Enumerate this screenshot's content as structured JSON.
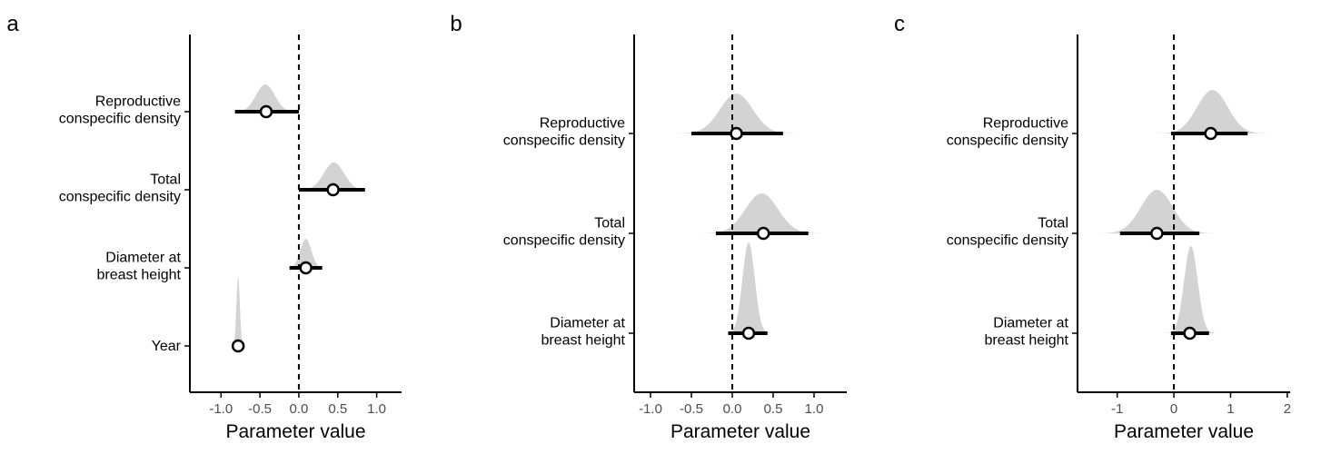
{
  "chart_data": [
    {
      "panel": "a",
      "type": "halfeye",
      "xlabel": "Parameter value",
      "xlim": [
        -1.4,
        1.32
      ],
      "xticks": [
        -1.0,
        -0.5,
        0.0,
        0.5,
        1.0
      ],
      "xtick_labels": [
        "-1.0",
        "-0.5",
        "0.0",
        "0.5",
        "1.0"
      ],
      "reference_line_x": 0,
      "categories": [
        {
          "label": [
            "Reproductive",
            "conspecific density"
          ],
          "median": -0.42,
          "lower": -0.82,
          "upper": 0.0,
          "dist_mean": -0.43,
          "dist_sd": 0.12,
          "dist_skew": 0.0
        },
        {
          "label": [
            "Total",
            "conspecific density"
          ],
          "median": 0.44,
          "lower": 0.0,
          "upper": 0.85,
          "dist_mean": 0.45,
          "dist_sd": 0.13,
          "dist_skew": 0.0
        },
        {
          "label": [
            "Diameter at",
            "breast height"
          ],
          "median": 0.09,
          "lower": -0.12,
          "upper": 0.3,
          "dist_mean": 0.09,
          "dist_sd": 0.07,
          "dist_skew": 0.0
        },
        {
          "label": [
            "Year"
          ],
          "median": -0.78,
          "lower": -0.82,
          "upper": -0.74,
          "dist_mean": -0.78,
          "dist_sd": 0.022,
          "dist_skew": 0.0
        }
      ]
    },
    {
      "panel": "b",
      "type": "halfeye",
      "xlabel": "Parameter value",
      "xlim": [
        -1.2,
        1.4
      ],
      "xticks": [
        -1.0,
        -0.5,
        0.0,
        0.5,
        1.0
      ],
      "xtick_labels": [
        "-1.0",
        "-0.5",
        "0.0",
        "0.5",
        "1.0"
      ],
      "reference_line_x": 0,
      "categories": [
        {
          "label": [
            "Reproductive",
            "conspecific density"
          ],
          "median": 0.05,
          "lower": -0.5,
          "upper": 0.62,
          "dist_mean": 0.05,
          "dist_sd": 0.2,
          "dist_skew": 0.0
        },
        {
          "label": [
            "Total",
            "conspecific density"
          ],
          "median": 0.38,
          "lower": -0.2,
          "upper": 0.93,
          "dist_mean": 0.36,
          "dist_sd": 0.2,
          "dist_skew": 0.0
        },
        {
          "label": [
            "Diameter at",
            "breast height"
          ],
          "median": 0.2,
          "lower": -0.05,
          "upper": 0.43,
          "dist_mean": 0.2,
          "dist_sd": 0.075,
          "dist_skew": 0.0
        }
      ]
    },
    {
      "panel": "c",
      "type": "halfeye",
      "xlabel": "Parameter value",
      "xlim": [
        -1.7,
        2.05
      ],
      "xticks": [
        -1,
        0,
        1,
        2
      ],
      "xtick_labels": [
        "-1",
        "0",
        "1",
        "2"
      ],
      "reference_line_x": 0,
      "categories": [
        {
          "label": [
            "Reproductive",
            "conspecific density"
          ],
          "median": 0.65,
          "lower": -0.05,
          "upper": 1.3,
          "dist_mean": 0.68,
          "dist_sd": 0.27,
          "dist_skew": 0.0
        },
        {
          "label": [
            "Total",
            "conspecific density"
          ],
          "median": -0.3,
          "lower": -0.95,
          "upper": 0.45,
          "dist_mean": -0.3,
          "dist_sd": 0.28,
          "dist_skew": 0.0
        },
        {
          "label": [
            "Diameter at",
            "breast height"
          ],
          "median": 0.28,
          "lower": -0.05,
          "upper": 0.62,
          "dist_mean": 0.3,
          "dist_sd": 0.12,
          "dist_skew": 0.0
        }
      ]
    }
  ]
}
